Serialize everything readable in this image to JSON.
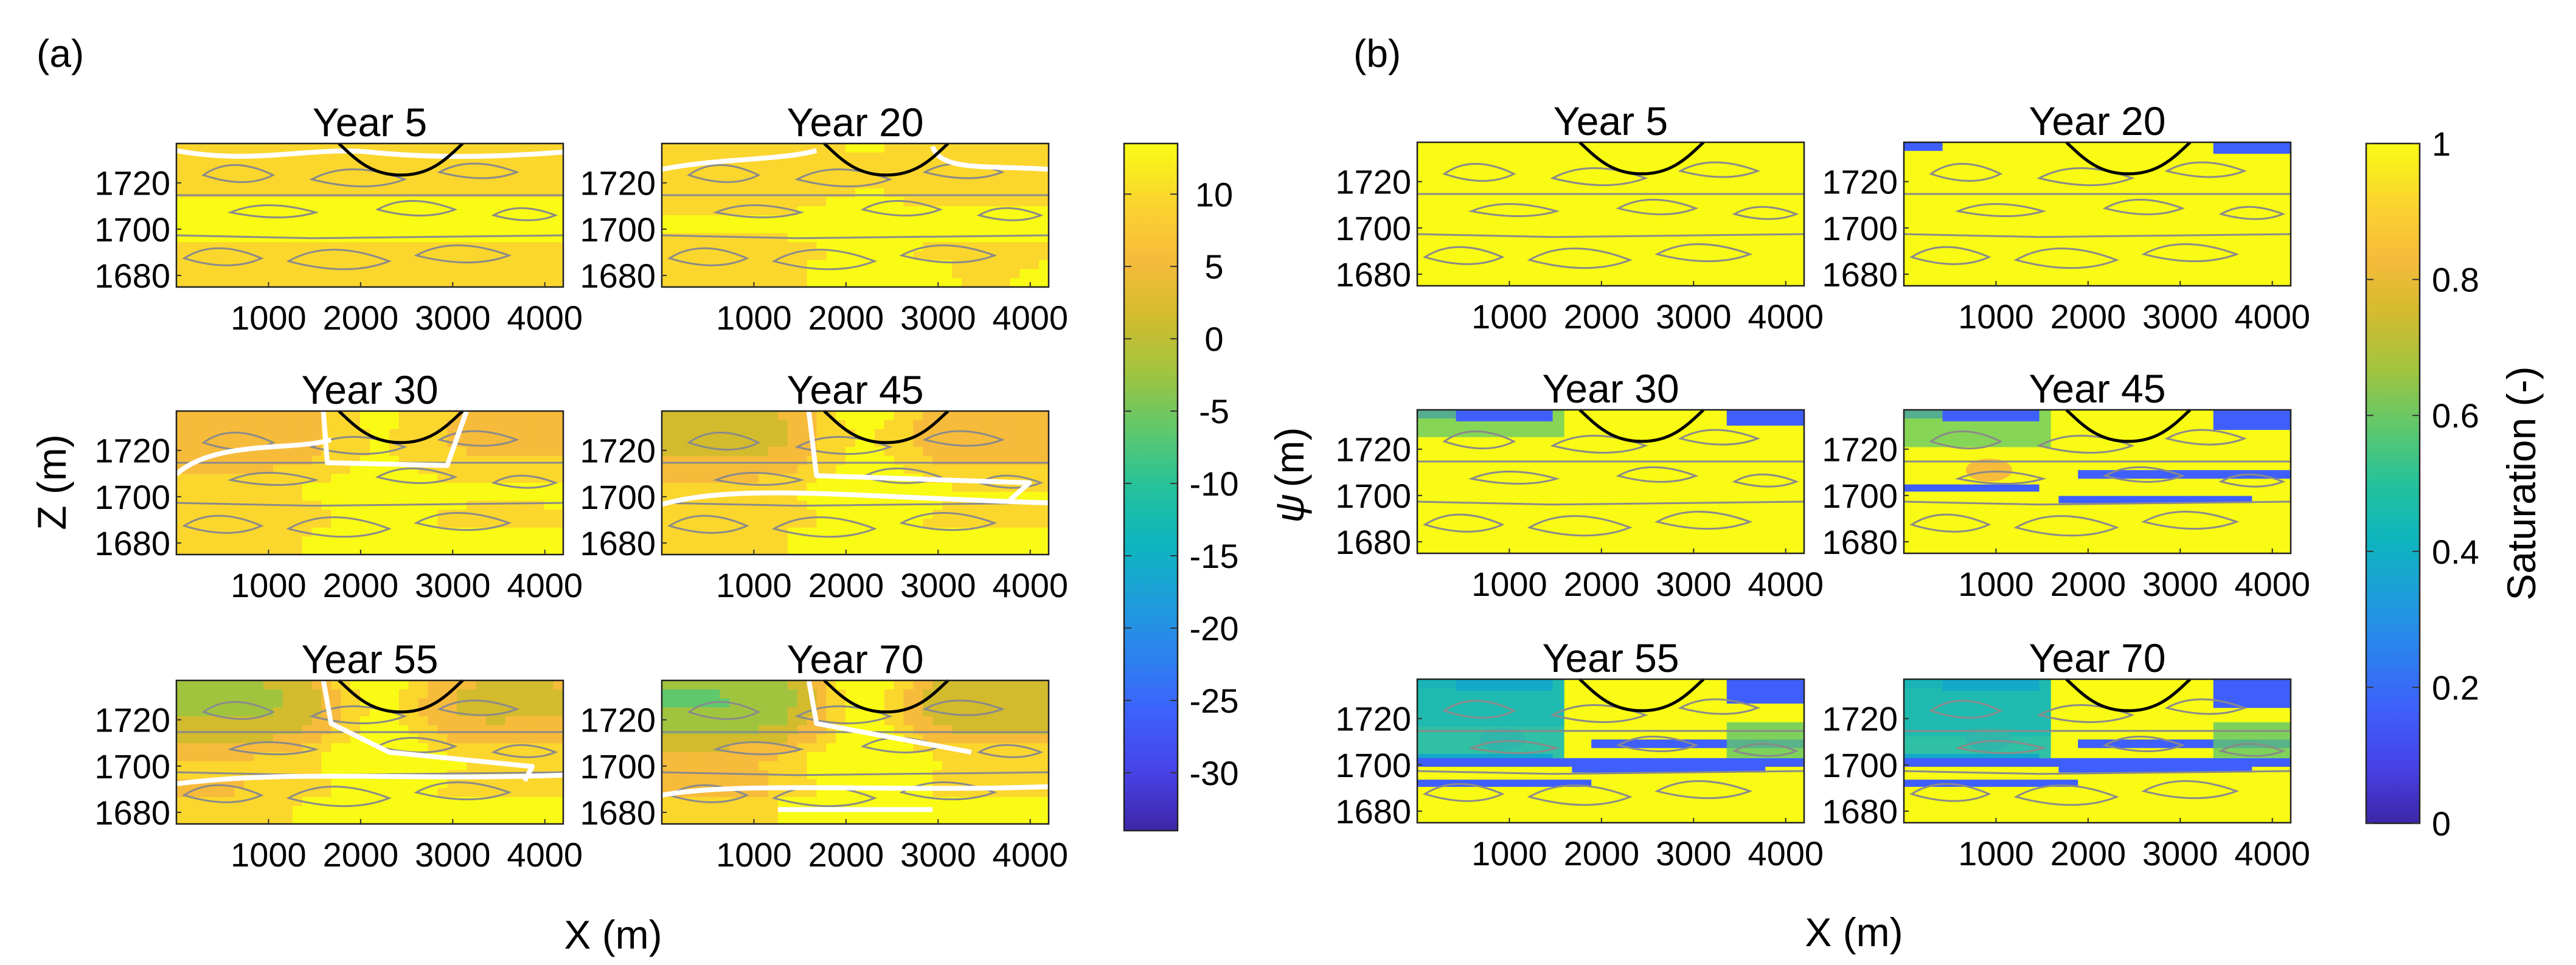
{
  "figure": {
    "panel_labels": [
      "(a)",
      "(b)"
    ]
  },
  "chart_data": [
    {
      "type": "heatmap",
      "panel": "(a)",
      "title": "",
      "xlabel": "X (m)",
      "ylabel": "Z (m)",
      "xlim": [
        0,
        4200
      ],
      "ylim": [
        1675,
        1737
      ],
      "x_ticks": [
        1000,
        2000,
        3000,
        4000
      ],
      "y_ticks": [
        1680,
        1700,
        1720
      ],
      "subplots": [
        "Year 5",
        "Year 20",
        "Year 30",
        "Year 45",
        "Year 55",
        "Year 70"
      ],
      "colorbar": {
        "label": "",
        "range": [
          -34,
          13.5
        ],
        "ticks": [
          10,
          5,
          0,
          -5,
          -10,
          -15,
          -20,
          -25,
          -30
        ],
        "colormap": "parula"
      },
      "overlays": [
        "grey facies contours",
        "black plume outline",
        "white contour line"
      ]
    },
    {
      "type": "heatmap",
      "panel": "(b)",
      "title": "",
      "xlabel": "X (m)",
      "ylabel": "ψ (m)",
      "ylabel_symbol": "ψ",
      "ylabel_unit": "(m)",
      "xlim": [
        0,
        4200
      ],
      "ylim": [
        1675,
        1737
      ],
      "x_ticks": [
        1000,
        2000,
        3000,
        4000
      ],
      "y_ticks": [
        1680,
        1700,
        1720
      ],
      "subplots": [
        "Year 5",
        "Year 20",
        "Year 30",
        "Year 45",
        "Year 55",
        "Year 70"
      ],
      "colorbar": {
        "label": "Saturation (-)",
        "range": [
          0,
          1
        ],
        "ticks": [
          1,
          0.8,
          0.6,
          0.4,
          0.2,
          0
        ],
        "colormap": "parula"
      },
      "overlays": [
        "grey facies contours",
        "black plume outline"
      ]
    }
  ]
}
